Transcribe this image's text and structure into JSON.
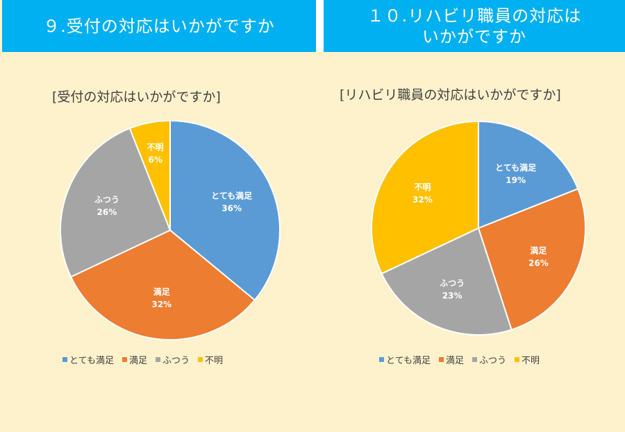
{
  "headers": {
    "left": "９.受付の対応はいかがですか",
    "right_line1": "１０.リハビリ職員の対応は",
    "right_line2": "いかがですか"
  },
  "colors": {
    "background": "#fef2cc",
    "header": "#00b0f0",
    "series": [
      "#5b9bd5",
      "#ed7d31",
      "#a5a5a5",
      "#ffc000"
    ]
  },
  "chart_data": [
    {
      "type": "pie",
      "title": "[受付の対応はいかがですか]",
      "categories": [
        "とても満足",
        "満足",
        "ふつう",
        "不明"
      ],
      "values": [
        36,
        32,
        26,
        6
      ],
      "value_labels": [
        "36%",
        "32%",
        "26%",
        "6%"
      ],
      "legend": "bottom"
    },
    {
      "type": "pie",
      "title": "[リハビリ職員の対応はいかがですか]",
      "categories": [
        "とても満足",
        "満足",
        "ふつう",
        "不明"
      ],
      "values": [
        19,
        26,
        23,
        32
      ],
      "value_labels": [
        "19%",
        "26%",
        "23%",
        "32%"
      ],
      "legend": "bottom"
    }
  ]
}
